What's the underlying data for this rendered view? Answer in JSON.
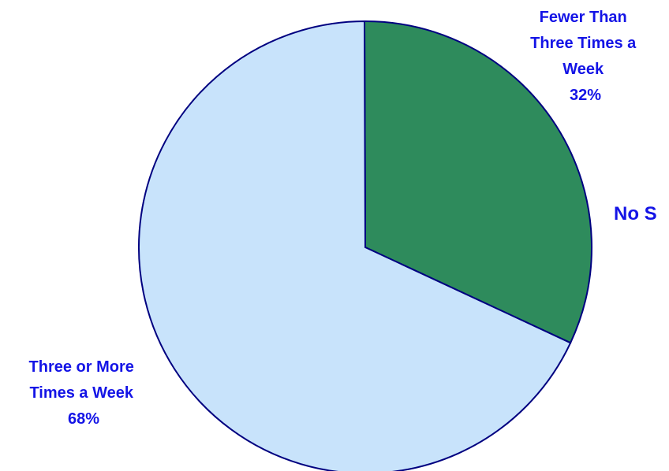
{
  "chart_data": {
    "type": "pie",
    "start_angle_deg": -90.2,
    "direction": "clockwise",
    "slices": [
      {
        "label_lines": [
          "Fewer Than",
          "Three Times a",
          "Week"
        ],
        "value": 32,
        "percent_text": "32%",
        "color": "#2e8b5c"
      },
      {
        "label_lines": [
          "Three or More",
          "Times a Week"
        ],
        "value": 68,
        "percent_text": "68%",
        "color": "#c8e3fb"
      }
    ],
    "extra_label": "No S",
    "label_color": "#1414e6",
    "edge_color": "#000080"
  }
}
